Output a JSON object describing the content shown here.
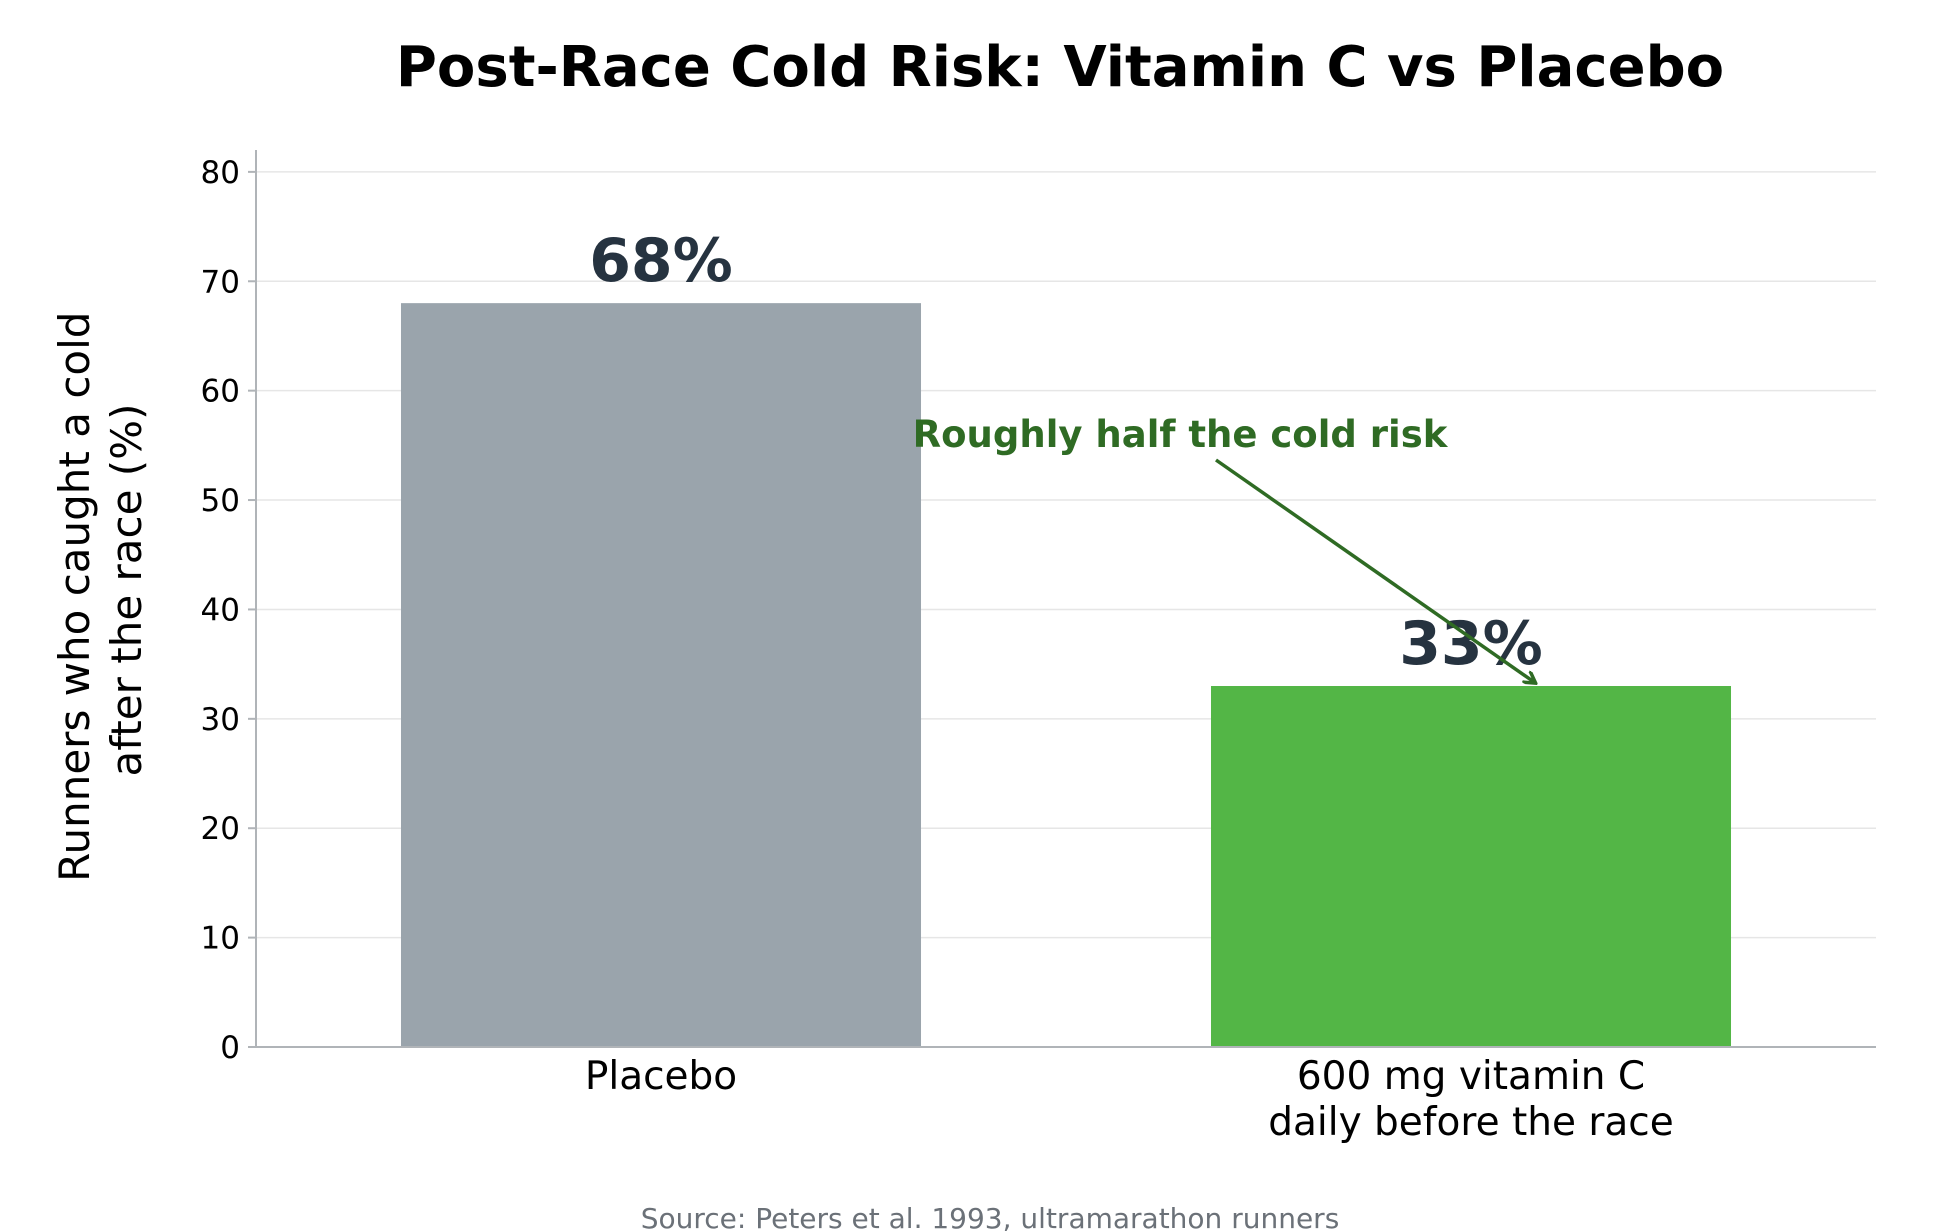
{
  "chart_data": {
    "type": "bar",
    "title": "Post-Race Cold Risk: Vitamin C vs Placebo",
    "ylabel_lines": [
      "Runners who caught a cold",
      "after the race (%)"
    ],
    "categories": [
      {
        "lines": [
          "Placebo"
        ]
      },
      {
        "lines": [
          "600 mg vitamin C",
          "daily before the race"
        ]
      }
    ],
    "values": [
      68,
      33
    ],
    "data_labels": [
      "68%",
      "33%"
    ],
    "bar_colors": [
      "#9aa4ac",
      "#53b646"
    ],
    "data_label_color": "#263340",
    "ylim": [
      0,
      82
    ],
    "yticks": [
      0,
      10,
      20,
      30,
      40,
      50,
      60,
      70,
      80
    ],
    "grid": true,
    "annotation": {
      "text": "Roughly half the cold risk",
      "color": "#2f6b24",
      "target_category_index": 1
    },
    "source": {
      "text": "Source: Peters et al. 1993, ultramarathon runners",
      "color": "#6b7178"
    }
  }
}
